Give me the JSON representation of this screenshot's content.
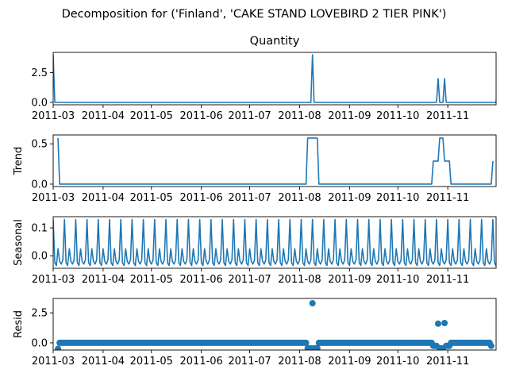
{
  "figure": {
    "title": "Decomposition for ('Finland', 'CAKE STAND LOVEBIRD 2 TIER PINK')"
  },
  "colors": {
    "series": "#1f77b4",
    "axis": "#000000",
    "background": "#ffffff"
  },
  "chart_data": [
    {
      "type": "line",
      "title": "Quantity",
      "ylabel": "",
      "x_range": [
        "2011-03-01",
        "2011-12-01"
      ],
      "ylim": [
        -0.2,
        4.2
      ],
      "x_tick_labels": [
        "2011-03",
        "2011-04",
        "2011-05",
        "2011-06",
        "2011-07",
        "2011-08",
        "2011-09",
        "2011-10",
        "2011-11"
      ],
      "y_tick_labels": [
        "0.0",
        "2.5"
      ],
      "y_ticks": [
        0,
        2.5
      ],
      "x": [
        "2011-03-01",
        "2011-03-02",
        "2011-08-08",
        "2011-08-09",
        "2011-08-10",
        "2011-10-25",
        "2011-10-26",
        "2011-10-27",
        "2011-10-29",
        "2011-10-30",
        "2011-10-31",
        "2011-12-01",
        "2011-12-02"
      ],
      "values": [
        4,
        0,
        0,
        4,
        0,
        0,
        2,
        0,
        0,
        2,
        0,
        0,
        2
      ]
    },
    {
      "type": "line",
      "title": "",
      "ylabel": "Trend",
      "x_range": [
        "2011-03-01",
        "2011-12-01"
      ],
      "ylim": [
        -0.03,
        0.61
      ],
      "x_tick_labels": [
        "2011-03",
        "2011-04",
        "2011-05",
        "2011-06",
        "2011-07",
        "2011-08",
        "2011-09",
        "2011-10",
        "2011-11"
      ],
      "y_tick_labels": [
        "0.0",
        "0.5"
      ],
      "y_ticks": [
        0,
        0.5
      ],
      "x": [
        "2011-03-04",
        "2011-03-05",
        "2011-08-05",
        "2011-08-06",
        "2011-08-12",
        "2011-08-13",
        "2011-10-22",
        "2011-10-23",
        "2011-10-26",
        "2011-10-27",
        "2011-10-29",
        "2011-10-30",
        "2011-11-02",
        "2011-11-03",
        "2011-11-28",
        "2011-11-29"
      ],
      "values": [
        0.571,
        0,
        0,
        0.571,
        0.571,
        0,
        0,
        0.286,
        0.286,
        0.571,
        0.571,
        0.286,
        0.286,
        0,
        0,
        0.286
      ]
    },
    {
      "type": "line",
      "title": "",
      "ylabel": "Seasonal",
      "x_range": [
        "2011-03-01",
        "2011-12-01"
      ],
      "ylim": [
        -0.045,
        0.14
      ],
      "x_tick_labels": [
        "2011-03",
        "2011-04",
        "2011-05",
        "2011-06",
        "2011-07",
        "2011-08",
        "2011-09",
        "2011-10",
        "2011-11"
      ],
      "y_tick_labels": [
        "0.0",
        "0.1"
      ],
      "y_ticks": [
        0,
        0.1
      ],
      "x_start": "2011-03-01",
      "x_end": "2011-12-02",
      "period_days": 7,
      "weekly_pattern": [
        0.13,
        -0.025,
        -0.035,
        0.025,
        -0.02,
        -0.03,
        -0.015
      ]
    },
    {
      "type": "scatter",
      "title": "",
      "ylabel": "Resid",
      "x_range": [
        "2011-03-01",
        "2011-12-01"
      ],
      "ylim": [
        -0.6,
        3.7
      ],
      "x_tick_labels": [
        "2011-03",
        "2011-04",
        "2011-05",
        "2011-06",
        "2011-07",
        "2011-08",
        "2011-09",
        "2011-10",
        "2011-11"
      ],
      "y_tick_labels": [
        "0.0",
        "2.5"
      ],
      "y_ticks": [
        0,
        2.5
      ],
      "x_start": "2011-03-04",
      "x_end": "2011-11-28",
      "baseline": 0,
      "special": [
        {
          "x": "2011-03-04",
          "y": -0.5
        },
        {
          "x": "2011-08-06",
          "y": -0.45
        },
        {
          "x": "2011-08-07",
          "y": -0.45
        },
        {
          "x": "2011-08-08",
          "y": -0.45
        },
        {
          "x": "2011-08-09",
          "y": 3.3
        },
        {
          "x": "2011-08-10",
          "y": -0.45
        },
        {
          "x": "2011-08-11",
          "y": -0.45
        },
        {
          "x": "2011-08-12",
          "y": -0.45
        },
        {
          "x": "2011-10-23",
          "y": -0.25
        },
        {
          "x": "2011-10-24",
          "y": -0.25
        },
        {
          "x": "2011-10-25",
          "y": -0.25
        },
        {
          "x": "2011-10-26",
          "y": 1.6
        },
        {
          "x": "2011-10-27",
          "y": -0.45
        },
        {
          "x": "2011-10-28",
          "y": -0.45
        },
        {
          "x": "2011-10-29",
          "y": -0.45
        },
        {
          "x": "2011-10-30",
          "y": 1.65
        },
        {
          "x": "2011-10-31",
          "y": -0.25
        },
        {
          "x": "2011-11-01",
          "y": -0.25
        },
        {
          "x": "2011-11-02",
          "y": -0.25
        },
        {
          "x": "2011-11-28",
          "y": -0.25
        }
      ]
    }
  ]
}
